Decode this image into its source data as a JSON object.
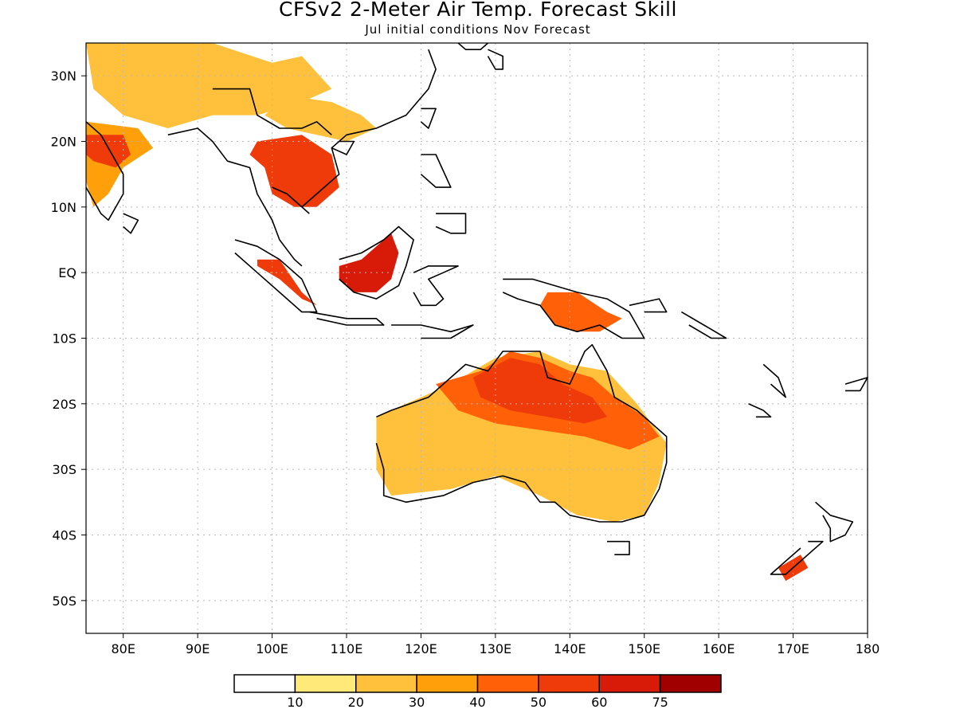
{
  "header": {
    "title": "CFSv2 2-Meter Air Temp. Forecast Skill",
    "subtitle": "Jul initial conditions  Nov Forecast"
  },
  "map": {
    "lon_range": [
      75,
      180
    ],
    "lat_range": [
      -55,
      35
    ],
    "lon_ticks": [
      {
        "value": 80,
        "label": "80E"
      },
      {
        "value": 90,
        "label": "90E"
      },
      {
        "value": 100,
        "label": "100E"
      },
      {
        "value": 110,
        "label": "110E"
      },
      {
        "value": 120,
        "label": "120E"
      },
      {
        "value": 130,
        "label": "130E"
      },
      {
        "value": 140,
        "label": "140E"
      },
      {
        "value": 150,
        "label": "150E"
      },
      {
        "value": 160,
        "label": "160E"
      },
      {
        "value": 170,
        "label": "170E"
      },
      {
        "value": 180,
        "label": "180"
      }
    ],
    "lat_ticks": [
      {
        "value": 30,
        "label": "30N"
      },
      {
        "value": 20,
        "label": "20N"
      },
      {
        "value": 10,
        "label": "10N"
      },
      {
        "value": 0,
        "label": "EQ"
      },
      {
        "value": -10,
        "label": "10S"
      },
      {
        "value": -20,
        "label": "20S"
      },
      {
        "value": -30,
        "label": "30S"
      },
      {
        "value": -40,
        "label": "40S"
      },
      {
        "value": -50,
        "label": "50S"
      }
    ],
    "grid": true,
    "coastline_color": "#000000"
  },
  "colorbar": {
    "colors": [
      "#ffffff",
      "#ffe978",
      "#ffc13c",
      "#ffa00a",
      "#ff6008",
      "#ef3a0a",
      "#d81a08",
      "#a00000"
    ],
    "labels": [
      "10",
      "20",
      "30",
      "40",
      "50",
      "60",
      "75"
    ]
  },
  "skill_regions": [
    {
      "name": "south-asia-north",
      "level": 2,
      "pts": [
        [
          75,
          35
        ],
        [
          92,
          35
        ],
        [
          100,
          32
        ],
        [
          104,
          33
        ],
        [
          108,
          28
        ],
        [
          104,
          26
        ],
        [
          98,
          24
        ],
        [
          92,
          24
        ],
        [
          86,
          22
        ],
        [
          80,
          24
        ],
        [
          76,
          28
        ]
      ]
    },
    {
      "name": "india-west",
      "level": 3,
      "pts": [
        [
          75,
          23
        ],
        [
          82,
          22
        ],
        [
          84,
          19
        ],
        [
          80,
          16
        ],
        [
          78,
          12
        ],
        [
          76,
          10
        ],
        [
          75,
          14
        ]
      ]
    },
    {
      "name": "india-core",
      "level": 5,
      "pts": [
        [
          75,
          21
        ],
        [
          80,
          21
        ],
        [
          81,
          18
        ],
        [
          79,
          16
        ],
        [
          76,
          17
        ],
        [
          75,
          18
        ]
      ]
    },
    {
      "name": "china-south",
      "level": 2,
      "pts": [
        [
          102,
          27
        ],
        [
          108,
          26
        ],
        [
          112,
          24
        ],
        [
          114,
          22
        ],
        [
          110,
          20
        ],
        [
          106,
          21
        ],
        [
          102,
          22
        ],
        [
          99,
          24
        ]
      ]
    },
    {
      "name": "indochina",
      "level": 5,
      "pts": [
        [
          98,
          20
        ],
        [
          104,
          21
        ],
        [
          108,
          18
        ],
        [
          109,
          13
        ],
        [
          106,
          10
        ],
        [
          103,
          10
        ],
        [
          100,
          12
        ],
        [
          99,
          16
        ],
        [
          97,
          18
        ]
      ]
    },
    {
      "name": "sumatra",
      "level": 5,
      "pts": [
        [
          98,
          2
        ],
        [
          101,
          2
        ],
        [
          104,
          -3
        ],
        [
          106,
          -5
        ],
        [
          104,
          -4
        ],
        [
          101,
          -1
        ],
        [
          98,
          1
        ]
      ]
    },
    {
      "name": "borneo",
      "level": 6,
      "pts": [
        [
          109,
          1
        ],
        [
          112,
          2
        ],
        [
          114,
          4
        ],
        [
          116,
          6
        ],
        [
          117,
          3
        ],
        [
          116,
          -1
        ],
        [
          114,
          -3
        ],
        [
          111,
          -3
        ],
        [
          109,
          -1
        ]
      ]
    },
    {
      "name": "new-guinea",
      "level": 4,
      "pts": [
        [
          137,
          -3
        ],
        [
          141,
          -3
        ],
        [
          145,
          -6
        ],
        [
          147,
          -7
        ],
        [
          144,
          -9
        ],
        [
          141,
          -9
        ],
        [
          138,
          -8
        ],
        [
          136,
          -5
        ]
      ]
    },
    {
      "name": "australia-broad",
      "level": 2,
      "pts": [
        [
          114,
          -22
        ],
        [
          120,
          -19
        ],
        [
          124,
          -17
        ],
        [
          130,
          -13
        ],
        [
          136,
          -12
        ],
        [
          140,
          -14
        ],
        [
          145,
          -15
        ],
        [
          149,
          -20
        ],
        [
          153,
          -26
        ],
        [
          152,
          -32
        ],
        [
          150,
          -37
        ],
        [
          146,
          -38
        ],
        [
          141,
          -37
        ],
        [
          136,
          -34
        ],
        [
          130,
          -31
        ],
        [
          124,
          -33
        ],
        [
          116,
          -34
        ],
        [
          114,
          -30
        ]
      ]
    },
    {
      "name": "australia-north",
      "level": 4,
      "pts": [
        [
          122,
          -17
        ],
        [
          128,
          -15
        ],
        [
          132,
          -12
        ],
        [
          136,
          -13
        ],
        [
          140,
          -15
        ],
        [
          143,
          -16
        ],
        [
          146,
          -19
        ],
        [
          150,
          -22
        ],
        [
          152,
          -25
        ],
        [
          148,
          -27
        ],
        [
          142,
          -25
        ],
        [
          136,
          -24
        ],
        [
          130,
          -23
        ],
        [
          125,
          -21
        ]
      ]
    },
    {
      "name": "australia-core",
      "level": 5,
      "pts": [
        [
          127,
          -16
        ],
        [
          132,
          -13
        ],
        [
          136,
          -14
        ],
        [
          139,
          -17
        ],
        [
          143,
          -19
        ],
        [
          145,
          -22
        ],
        [
          142,
          -23
        ],
        [
          137,
          -22
        ],
        [
          132,
          -21
        ],
        [
          128,
          -19
        ]
      ]
    },
    {
      "name": "nz-south",
      "level": 5,
      "pts": [
        [
          168,
          -45
        ],
        [
          171,
          -43
        ],
        [
          172,
          -45
        ],
        [
          169,
          -47
        ]
      ]
    }
  ],
  "coastlines": [
    {
      "name": "india",
      "pts": [
        [
          75,
          23
        ],
        [
          77,
          21
        ],
        [
          80,
          15
        ],
        [
          80,
          12
        ],
        [
          78,
          8
        ],
        [
          77,
          9
        ],
        [
          75,
          13
        ]
      ]
    },
    {
      "name": "sri-lanka",
      "pts": [
        [
          80,
          9
        ],
        [
          82,
          8
        ],
        [
          81,
          6
        ],
        [
          80,
          7
        ]
      ]
    },
    {
      "name": "bay-bengal-east",
      "pts": [
        [
          86,
          21
        ],
        [
          90,
          22
        ],
        [
          92,
          20
        ],
        [
          94,
          17
        ],
        [
          97,
          16
        ],
        [
          98,
          12
        ],
        [
          100,
          8
        ],
        [
          101,
          5
        ],
        [
          103,
          2
        ],
        [
          104,
          1
        ]
      ]
    },
    {
      "name": "south-china-coast",
      "pts": [
        [
          104,
          10
        ],
        [
          106,
          12
        ],
        [
          109,
          15
        ],
        [
          108,
          19
        ],
        [
          110,
          21
        ],
        [
          114,
          22
        ],
        [
          118,
          24
        ],
        [
          121,
          28
        ],
        [
          122,
          31
        ],
        [
          121,
          34
        ]
      ]
    },
    {
      "name": "gulf-thailand",
      "pts": [
        [
          100,
          13
        ],
        [
          102,
          12
        ],
        [
          104,
          10
        ],
        [
          105,
          9
        ]
      ]
    },
    {
      "name": "korea-coast",
      "pts": [
        [
          125,
          35
        ],
        [
          126,
          34
        ],
        [
          128,
          34
        ],
        [
          129,
          35
        ]
      ]
    },
    {
      "name": "japan-kyushu",
      "pts": [
        [
          129,
          34
        ],
        [
          131,
          33
        ],
        [
          131,
          31
        ],
        [
          130,
          31
        ],
        [
          129,
          33
        ]
      ]
    },
    {
      "name": "taiwan",
      "pts": [
        [
          120,
          25
        ],
        [
          122,
          25
        ],
        [
          121,
          22
        ],
        [
          120,
          23
        ]
      ]
    },
    {
      "name": "hainan",
      "pts": [
        [
          109,
          20
        ],
        [
          111,
          20
        ],
        [
          110,
          18
        ],
        [
          108,
          19
        ]
      ]
    },
    {
      "name": "luzon",
      "pts": [
        [
          120,
          18
        ],
        [
          122,
          18
        ],
        [
          124,
          13
        ],
        [
          122,
          13
        ],
        [
          120,
          15
        ]
      ]
    },
    {
      "name": "mindanao",
      "pts": [
        [
          122,
          9
        ],
        [
          126,
          9
        ],
        [
          126,
          6
        ],
        [
          124,
          6
        ],
        [
          122,
          7
        ]
      ]
    },
    {
      "name": "sumatra",
      "pts": [
        [
          95,
          5
        ],
        [
          98,
          4
        ],
        [
          101,
          2
        ],
        [
          104,
          -1
        ],
        [
          106,
          -6
        ],
        [
          104,
          -6
        ],
        [
          101,
          -3
        ],
        [
          98,
          0
        ],
        [
          95,
          3
        ]
      ]
    },
    {
      "name": "java",
      "pts": [
        [
          105,
          -6
        ],
        [
          110,
          -7
        ],
        [
          114,
          -7
        ],
        [
          115,
          -8
        ],
        [
          110,
          -8
        ],
        [
          106,
          -7
        ]
      ]
    },
    {
      "name": "borneo",
      "pts": [
        [
          109,
          2
        ],
        [
          112,
          3
        ],
        [
          115,
          5
        ],
        [
          117,
          7
        ],
        [
          119,
          5
        ],
        [
          118,
          1
        ],
        [
          117,
          -2
        ],
        [
          114,
          -4
        ],
        [
          111,
          -3
        ],
        [
          109,
          -1
        ]
      ]
    },
    {
      "name": "sulawesi",
      "pts": [
        [
          119,
          0
        ],
        [
          121,
          1
        ],
        [
          125,
          1
        ],
        [
          123,
          0
        ],
        [
          121,
          -1
        ],
        [
          123,
          -4
        ],
        [
          122,
          -5
        ],
        [
          120,
          -5
        ],
        [
          119,
          -3
        ]
      ]
    },
    {
      "name": "lesser-sunda",
      "pts": [
        [
          116,
          -8
        ],
        [
          120,
          -8
        ],
        [
          124,
          -9
        ],
        [
          127,
          -8
        ],
        [
          124,
          -10
        ],
        [
          120,
          -10
        ]
      ]
    },
    {
      "name": "new-guinea",
      "pts": [
        [
          131,
          -1
        ],
        [
          135,
          -1
        ],
        [
          138,
          -2
        ],
        [
          141,
          -3
        ],
        [
          145,
          -4
        ],
        [
          148,
          -6
        ],
        [
          150,
          -10
        ],
        [
          147,
          -10
        ],
        [
          144,
          -8
        ],
        [
          141,
          -9
        ],
        [
          138,
          -8
        ],
        [
          136,
          -5
        ],
        [
          133,
          -4
        ],
        [
          131,
          -3
        ]
      ]
    },
    {
      "name": "new-britain",
      "pts": [
        [
          148,
          -5
        ],
        [
          152,
          -4
        ],
        [
          153,
          -6
        ],
        [
          150,
          -6
        ]
      ]
    },
    {
      "name": "solomons",
      "pts": [
        [
          155,
          -6
        ],
        [
          158,
          -8
        ],
        [
          161,
          -10
        ],
        [
          159,
          -10
        ],
        [
          156,
          -8
        ]
      ]
    },
    {
      "name": "australia",
      "pts": [
        [
          114,
          -22
        ],
        [
          116,
          -21
        ],
        [
          121,
          -19
        ],
        [
          123,
          -17
        ],
        [
          126,
          -14
        ],
        [
          129,
          -15
        ],
        [
          131,
          -12
        ],
        [
          134,
          -12
        ],
        [
          136,
          -12
        ],
        [
          137,
          -16
        ],
        [
          140,
          -17
        ],
        [
          142,
          -12
        ],
        [
          143,
          -11
        ],
        [
          145,
          -15
        ],
        [
          146,
          -19
        ],
        [
          149,
          -21
        ],
        [
          151,
          -23
        ],
        [
          153,
          -25
        ],
        [
          153,
          -29
        ],
        [
          152,
          -33
        ],
        [
          150,
          -37
        ],
        [
          147,
          -38
        ],
        [
          144,
          -38
        ],
        [
          140,
          -37
        ],
        [
          138,
          -35
        ],
        [
          136,
          -35
        ],
        [
          134,
          -32
        ],
        [
          131,
          -31
        ],
        [
          127,
          -32
        ],
        [
          123,
          -34
        ],
        [
          118,
          -35
        ],
        [
          115,
          -34
        ],
        [
          115,
          -30
        ],
        [
          114,
          -26
        ]
      ]
    },
    {
      "name": "tasmania",
      "pts": [
        [
          145,
          -41
        ],
        [
          148,
          -41
        ],
        [
          148,
          -43
        ],
        [
          146,
          -43
        ]
      ]
    },
    {
      "name": "nz-north",
      "pts": [
        [
          173,
          -35
        ],
        [
          175,
          -37
        ],
        [
          178,
          -38
        ],
        [
          177,
          -40
        ],
        [
          175,
          -41
        ],
        [
          175,
          -39
        ],
        [
          174,
          -37
        ]
      ]
    },
    {
      "name": "nz-south",
      "pts": [
        [
          172,
          -41
        ],
        [
          174,
          -41
        ],
        [
          171,
          -44
        ],
        [
          169,
          -46
        ],
        [
          167,
          -46
        ],
        [
          169,
          -44
        ],
        [
          171,
          -42
        ]
      ]
    },
    {
      "name": "vanuatu",
      "pts": [
        [
          166,
          -14
        ],
        [
          168,
          -16
        ],
        [
          169,
          -19
        ],
        [
          167,
          -17
        ]
      ]
    },
    {
      "name": "new-caledonia",
      "pts": [
        [
          164,
          -20
        ],
        [
          166,
          -21
        ],
        [
          167,
          -22
        ],
        [
          165,
          -22
        ]
      ]
    },
    {
      "name": "fiji",
      "pts": [
        [
          177,
          -17
        ],
        [
          180,
          -16
        ],
        [
          179,
          -18
        ],
        [
          177,
          -18
        ]
      ]
    },
    {
      "name": "china-border",
      "pts": [
        [
          92,
          28
        ],
        [
          97,
          28
        ],
        [
          98,
          24
        ],
        [
          101,
          22
        ],
        [
          104,
          22
        ],
        [
          106,
          23
        ],
        [
          108,
          21
        ]
      ]
    }
  ]
}
